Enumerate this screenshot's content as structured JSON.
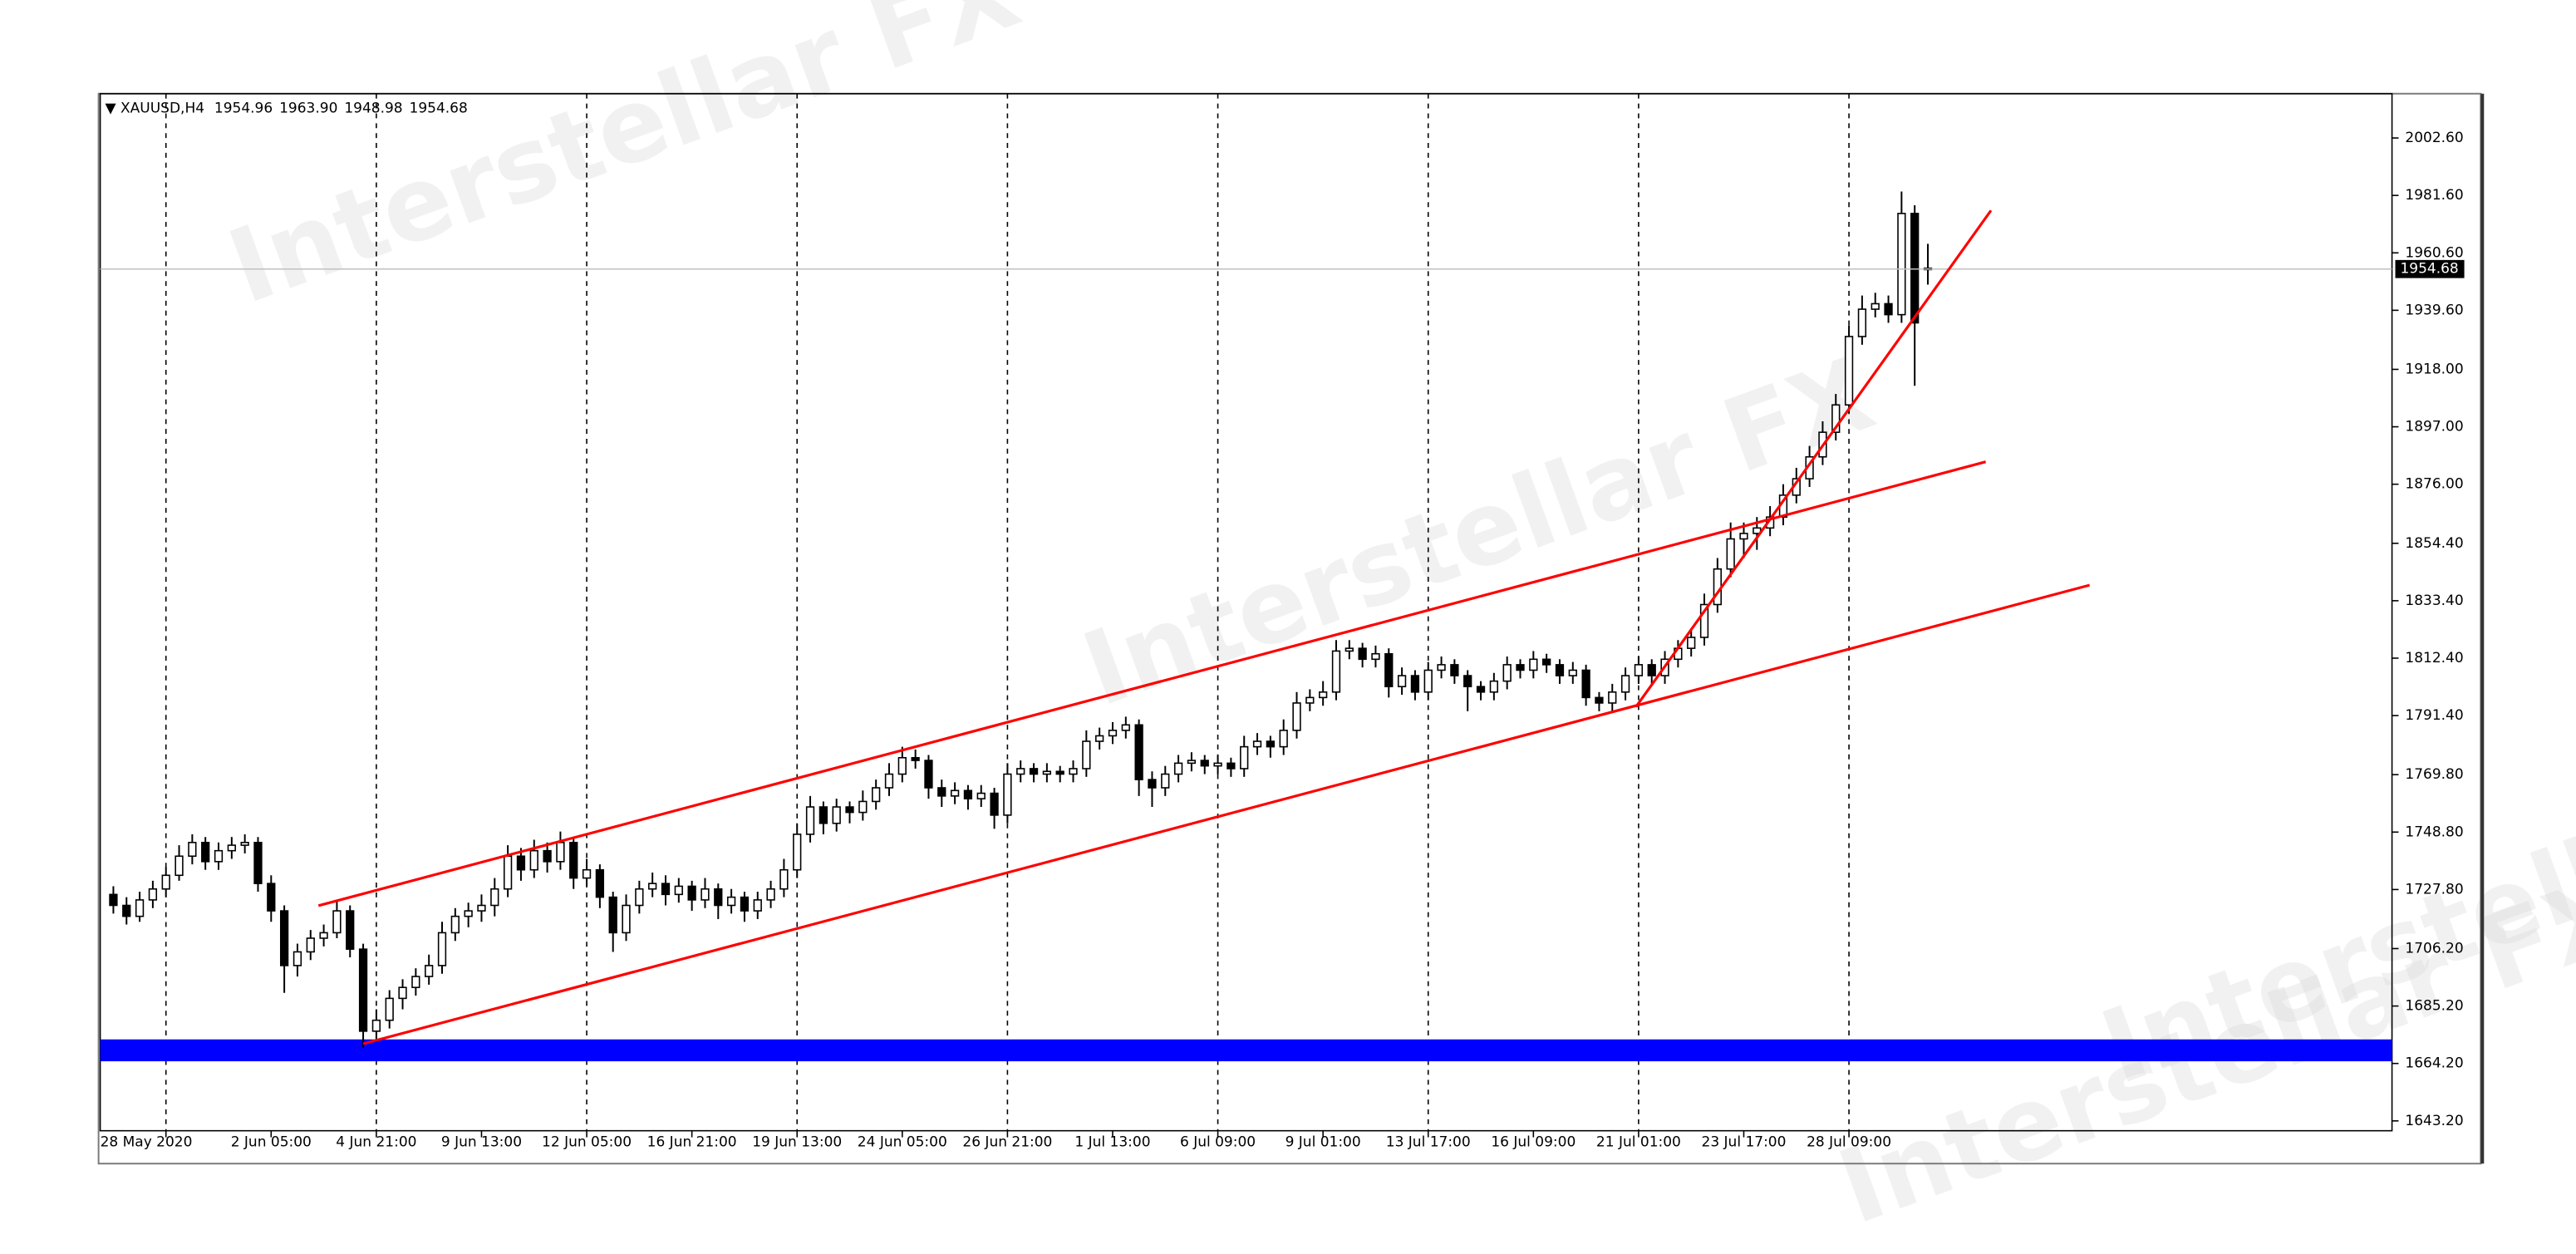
{
  "chart_data": {
    "type": "candlestick",
    "symbol": "XAUUSD,H4",
    "last_bar_labels": [
      "1954.96",
      "1963.90",
      "1948.98",
      "1954.68"
    ],
    "watermark": "Interstellar FX",
    "up_color": "#ffffff",
    "down_color": "#000000",
    "outline_color": "#000000",
    "xlim": [
      -1,
      173.3
    ],
    "ylim": [
      1639.6,
      2018.8
    ],
    "xticks": [
      {
        "value": 4,
        "label": "28 May 2020"
      },
      {
        "value": 12,
        "label": "2 Jun 05:00"
      },
      {
        "value": 20,
        "label": "4 Jun 21:00"
      },
      {
        "value": 28,
        "label": "9 Jun 13:00"
      },
      {
        "value": 36,
        "label": "12 Jun 05:00"
      },
      {
        "value": 44,
        "label": "16 Jun 21:00"
      },
      {
        "value": 52,
        "label": "19 Jun 13:00"
      },
      {
        "value": 60,
        "label": "24 Jun 05:00"
      },
      {
        "value": 68,
        "label": "26 Jun 21:00"
      },
      {
        "value": 76,
        "label": "1 Jul 13:00"
      },
      {
        "value": 84,
        "label": "6 Jul 09:00"
      },
      {
        "value": 92,
        "label": "9 Jul 01:00"
      },
      {
        "value": 100,
        "label": "13 Jul 17:00"
      },
      {
        "value": 108,
        "label": "16 Jul 09:00"
      },
      {
        "value": 116,
        "label": "21 Jul 01:00"
      },
      {
        "value": 124,
        "label": "23 Jul 17:00"
      },
      {
        "value": 132,
        "label": "28 Jul 09:00"
      }
    ],
    "yticks": [
      {
        "value": 1643.2,
        "label": "1643.20"
      },
      {
        "value": 1664.2,
        "label": "1664.20"
      },
      {
        "value": 1685.2,
        "label": "1685.20"
      },
      {
        "value": 1706.2,
        "label": "1706.20"
      },
      {
        "value": 1727.8,
        "label": "1727.80"
      },
      {
        "value": 1748.8,
        "label": "1748.80"
      },
      {
        "value": 1769.8,
        "label": "1769.80"
      },
      {
        "value": 1791.4,
        "label": "1791.40"
      },
      {
        "value": 1812.4,
        "label": "1812.40"
      },
      {
        "value": 1833.4,
        "label": "1833.40"
      },
      {
        "value": 1854.4,
        "label": "1854.40"
      },
      {
        "value": 1876,
        "label": "1876.00"
      },
      {
        "value": 1897,
        "label": "1897.00"
      },
      {
        "value": 1918,
        "label": "1918.00"
      },
      {
        "value": 1939.6,
        "label": "1939.60"
      },
      {
        "value": 1960.6,
        "label": "1960.60"
      },
      {
        "value": 1981.6,
        "label": "1981.60"
      },
      {
        "value": 2002.6,
        "label": "2002.60"
      }
    ],
    "ohlc": [
      [
        1726,
        1729,
        1719,
        1722
      ],
      [
        1722,
        1725,
        1715,
        1718
      ],
      [
        1718,
        1727,
        1716,
        1724
      ],
      [
        1724,
        1731,
        1721,
        1728
      ],
      [
        1728,
        1736,
        1725,
        1733
      ],
      [
        1733,
        1744,
        1731,
        1740
      ],
      [
        1740,
        1748,
        1737,
        1745
      ],
      [
        1745,
        1747,
        1735,
        1738
      ],
      [
        1738,
        1745,
        1735,
        1742
      ],
      [
        1742,
        1747,
        1739,
        1744
      ],
      [
        1744,
        1748,
        1741,
        1745
      ],
      [
        1745,
        1747,
        1727,
        1730
      ],
      [
        1730,
        1733,
        1716,
        1720
      ],
      [
        1720,
        1722,
        1690,
        1700
      ],
      [
        1700,
        1708,
        1696,
        1705
      ],
      [
        1705,
        1713,
        1702,
        1710
      ],
      [
        1710,
        1715,
        1707,
        1712
      ],
      [
        1712,
        1724,
        1710,
        1720
      ],
      [
        1720,
        1722,
        1703,
        1706
      ],
      [
        1706,
        1708,
        1670,
        1676
      ],
      [
        1676,
        1684,
        1672,
        1680
      ],
      [
        1680,
        1691,
        1677,
        1688
      ],
      [
        1688,
        1695,
        1684,
        1692
      ],
      [
        1692,
        1699,
        1689,
        1696
      ],
      [
        1696,
        1704,
        1693,
        1700
      ],
      [
        1700,
        1716,
        1697,
        1712
      ],
      [
        1712,
        1721,
        1709,
        1718
      ],
      [
        1718,
        1723,
        1714,
        1720
      ],
      [
        1720,
        1726,
        1716,
        1722
      ],
      [
        1722,
        1732,
        1718,
        1728
      ],
      [
        1728,
        1744,
        1725,
        1740
      ],
      [
        1740,
        1743,
        1731,
        1735
      ],
      [
        1735,
        1746,
        1732,
        1742
      ],
      [
        1742,
        1745,
        1734,
        1738
      ],
      [
        1738,
        1749,
        1735,
        1745
      ],
      [
        1745,
        1747,
        1728,
        1732
      ],
      [
        1732,
        1739,
        1729,
        1735
      ],
      [
        1735,
        1737,
        1721,
        1725
      ],
      [
        1725,
        1727,
        1705,
        1712
      ],
      [
        1712,
        1726,
        1709,
        1722
      ],
      [
        1722,
        1731,
        1719,
        1728
      ],
      [
        1728,
        1734,
        1725,
        1730
      ],
      [
        1730,
        1733,
        1722,
        1726
      ],
      [
        1726,
        1732,
        1723,
        1729
      ],
      [
        1729,
        1731,
        1720,
        1724
      ],
      [
        1724,
        1732,
        1721,
        1728
      ],
      [
        1728,
        1730,
        1717,
        1722
      ],
      [
        1722,
        1728,
        1719,
        1725
      ],
      [
        1725,
        1727,
        1716,
        1720
      ],
      [
        1720,
        1727,
        1717,
        1724
      ],
      [
        1724,
        1731,
        1721,
        1728
      ],
      [
        1728,
        1739,
        1725,
        1735
      ],
      [
        1735,
        1752,
        1732,
        1748
      ],
      [
        1748,
        1762,
        1745,
        1758
      ],
      [
        1758,
        1760,
        1748,
        1752
      ],
      [
        1752,
        1761,
        1749,
        1758
      ],
      [
        1758,
        1760,
        1752,
        1756
      ],
      [
        1756,
        1764,
        1753,
        1760
      ],
      [
        1760,
        1768,
        1757,
        1765
      ],
      [
        1765,
        1774,
        1762,
        1770
      ],
      [
        1770,
        1780,
        1767,
        1776
      ],
      [
        1776,
        1779,
        1772,
        1775
      ],
      [
        1775,
        1777,
        1761,
        1765
      ],
      [
        1765,
        1768,
        1758,
        1762
      ],
      [
        1762,
        1767,
        1759,
        1764
      ],
      [
        1764,
        1766,
        1757,
        1761
      ],
      [
        1761,
        1766,
        1758,
        1763
      ],
      [
        1763,
        1765,
        1750,
        1755
      ],
      [
        1755,
        1774,
        1752,
        1770
      ],
      [
        1770,
        1775,
        1767,
        1772
      ],
      [
        1772,
        1774,
        1767,
        1770
      ],
      [
        1770,
        1774,
        1767,
        1771
      ],
      [
        1771,
        1773,
        1767,
        1770
      ],
      [
        1770,
        1775,
        1767,
        1772
      ],
      [
        1772,
        1786,
        1769,
        1782
      ],
      [
        1782,
        1787,
        1779,
        1784
      ],
      [
        1784,
        1789,
        1781,
        1786
      ],
      [
        1786,
        1791,
        1783,
        1788
      ],
      [
        1788,
        1790,
        1762,
        1768
      ],
      [
        1768,
        1771,
        1758,
        1765
      ],
      [
        1765,
        1773,
        1762,
        1770
      ],
      [
        1770,
        1777,
        1767,
        1774
      ],
      [
        1774,
        1778,
        1771,
        1775
      ],
      [
        1775,
        1777,
        1770,
        1773
      ],
      [
        1773,
        1777,
        1770,
        1774
      ],
      [
        1774,
        1776,
        1769,
        1772
      ],
      [
        1772,
        1784,
        1769,
        1780
      ],
      [
        1780,
        1785,
        1777,
        1782
      ],
      [
        1782,
        1784,
        1776,
        1780
      ],
      [
        1780,
        1790,
        1777,
        1786
      ],
      [
        1786,
        1800,
        1783,
        1796
      ],
      [
        1796,
        1801,
        1793,
        1798
      ],
      [
        1798,
        1804,
        1795,
        1800
      ],
      [
        1800,
        1819,
        1797,
        1815
      ],
      [
        1815,
        1819,
        1812,
        1816
      ],
      [
        1816,
        1818,
        1809,
        1812
      ],
      [
        1812,
        1817,
        1809,
        1814
      ],
      [
        1814,
        1816,
        1798,
        1802
      ],
      [
        1802,
        1809,
        1799,
        1806
      ],
      [
        1806,
        1808,
        1797,
        1800
      ],
      [
        1800,
        1811,
        1797,
        1808
      ],
      [
        1808,
        1813,
        1805,
        1810
      ],
      [
        1810,
        1812,
        1803,
        1806
      ],
      [
        1806,
        1808,
        1793,
        1802
      ],
      [
        1802,
        1804,
        1797,
        1800
      ],
      [
        1800,
        1807,
        1797,
        1804
      ],
      [
        1804,
        1813,
        1801,
        1810
      ],
      [
        1810,
        1812,
        1805,
        1808
      ],
      [
        1808,
        1815,
        1805,
        1812
      ],
      [
        1812,
        1814,
        1807,
        1810
      ],
      [
        1810,
        1812,
        1803,
        1806
      ],
      [
        1806,
        1811,
        1803,
        1808
      ],
      [
        1808,
        1810,
        1795,
        1798
      ],
      [
        1798,
        1800,
        1793,
        1796
      ],
      [
        1796,
        1803,
        1793,
        1800
      ],
      [
        1800,
        1809,
        1797,
        1806
      ],
      [
        1806,
        1813,
        1803,
        1810
      ],
      [
        1810,
        1812,
        1803,
        1806
      ],
      [
        1806,
        1815,
        1803,
        1812
      ],
      [
        1812,
        1819,
        1809,
        1816
      ],
      [
        1816,
        1823,
        1813,
        1820
      ],
      [
        1820,
        1836,
        1817,
        1832
      ],
      [
        1832,
        1849,
        1829,
        1845
      ],
      [
        1845,
        1862,
        1842,
        1856
      ],
      [
        1856,
        1862,
        1849,
        1858
      ],
      [
        1858,
        1864,
        1852,
        1860
      ],
      [
        1860,
        1868,
        1857,
        1864
      ],
      [
        1864,
        1876,
        1861,
        1872
      ],
      [
        1872,
        1882,
        1869,
        1878
      ],
      [
        1878,
        1890,
        1875,
        1886
      ],
      [
        1886,
        1899,
        1883,
        1895
      ],
      [
        1895,
        1909,
        1892,
        1905
      ],
      [
        1905,
        1934,
        1902,
        1930
      ],
      [
        1930,
        1945,
        1927,
        1940
      ],
      [
        1940,
        1946,
        1937,
        1942
      ],
      [
        1942,
        1945,
        1935,
        1938
      ],
      [
        1938,
        1983,
        1935,
        1975
      ],
      [
        1975,
        1978,
        1912,
        1935
      ],
      [
        1954.96,
        1963.9,
        1948.98,
        1954.68
      ]
    ],
    "support_zone": {
      "color": "#0000ff",
      "range": [
        1665,
        1673
      ]
    },
    "trendlines": [
      {
        "color": "#ff0000",
        "points": [
          [
            15.6,
            1721.9
          ],
          [
            142.4,
            1884.2
          ]
        ]
      },
      {
        "color": "#ff0000",
        "points": [
          [
            19.0,
            1671.4
          ],
          [
            150.3,
            1839.1
          ]
        ]
      },
      {
        "color": "#ff0000",
        "points": [
          [
            115.8,
            1794.6
          ],
          [
            142.8,
            1976.1
          ]
        ]
      }
    ],
    "price_line_color": "#c0c0c0"
  }
}
